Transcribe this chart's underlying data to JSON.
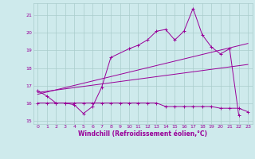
{
  "bg_color": "#ceeaec",
  "line_color": "#990099",
  "grid_color": "#aacccc",
  "xlabel": "Windchill (Refroidissement éolien,°C)",
  "ylabel_ticks": [
    15,
    16,
    17,
    18,
    19,
    20,
    21
  ],
  "xlim": [
    -0.5,
    23.5
  ],
  "ylim": [
    14.8,
    21.7
  ],
  "xticks": [
    0,
    1,
    2,
    3,
    4,
    5,
    6,
    7,
    8,
    9,
    10,
    11,
    12,
    13,
    14,
    15,
    16,
    17,
    18,
    19,
    20,
    21,
    22,
    23
  ],
  "series1_x": [
    0,
    1,
    2,
    3,
    4,
    5,
    6,
    7,
    8,
    10,
    11,
    12,
    13,
    14,
    15,
    16,
    17,
    18,
    19,
    20,
    21,
    22
  ],
  "series1_y": [
    16.7,
    16.4,
    16.0,
    16.0,
    15.9,
    15.4,
    15.8,
    16.9,
    18.6,
    19.1,
    19.3,
    19.6,
    20.1,
    20.2,
    19.6,
    20.1,
    21.4,
    19.9,
    19.2,
    18.8,
    19.1,
    15.3
  ],
  "series2_x": [
    0,
    1,
    2,
    3,
    4,
    5,
    6,
    7,
    8,
    9,
    10,
    11,
    12,
    13,
    14,
    15,
    16,
    17,
    18,
    19,
    20,
    21,
    22,
    23
  ],
  "series2_y": [
    16.0,
    16.0,
    16.0,
    16.0,
    16.0,
    16.0,
    16.0,
    16.0,
    16.0,
    16.0,
    16.0,
    16.0,
    16.0,
    16.0,
    15.8,
    15.8,
    15.8,
    15.8,
    15.8,
    15.8,
    15.7,
    15.7,
    15.7,
    15.5
  ],
  "series3_x": [
    0,
    23
  ],
  "series3_y": [
    16.5,
    19.4
  ],
  "series4_x": [
    0,
    23
  ],
  "series4_y": [
    16.6,
    18.2
  ]
}
